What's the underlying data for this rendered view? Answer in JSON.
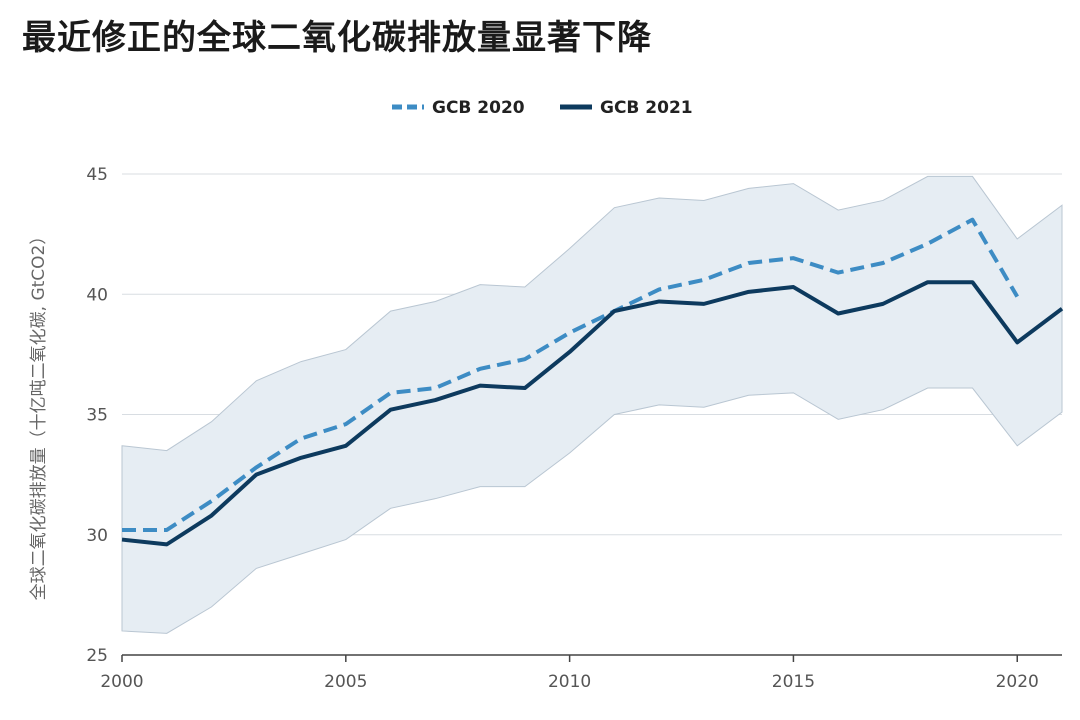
{
  "title": "最近修正的全球二氧化碳排放量显著下降",
  "chart_data": {
    "type": "line",
    "title": "最近修正的全球二氧化碳排放量显著下降",
    "xlabel": "",
    "ylabel": "全球二氧化碳排放量（十亿吨二氧化碳, GtCO2）",
    "xlim": [
      2000,
      2021
    ],
    "ylim": [
      25,
      45
    ],
    "x_ticks": [
      2000,
      2005,
      2010,
      2015,
      2020
    ],
    "y_ticks": [
      25,
      30,
      35,
      40,
      45
    ],
    "grid": "horizontal",
    "legend_position": "top-center",
    "series": [
      {
        "name": "GCB 2020",
        "style": "dashed",
        "color": "#3d8cc4",
        "x": [
          2000,
          2001,
          2002,
          2003,
          2004,
          2005,
          2006,
          2007,
          2008,
          2009,
          2010,
          2011,
          2012,
          2013,
          2014,
          2015,
          2016,
          2017,
          2018,
          2019,
          2020
        ],
        "values": [
          30.2,
          30.2,
          31.4,
          32.8,
          34.0,
          34.6,
          35.9,
          36.1,
          36.9,
          37.3,
          38.4,
          39.3,
          40.2,
          40.6,
          41.3,
          41.5,
          40.9,
          41.3,
          42.1,
          43.1,
          39.9
        ]
      },
      {
        "name": "GCB 2021",
        "style": "solid",
        "color": "#0d3a5e",
        "x": [
          2000,
          2001,
          2002,
          2003,
          2004,
          2005,
          2006,
          2007,
          2008,
          2009,
          2010,
          2011,
          2012,
          2013,
          2014,
          2015,
          2016,
          2017,
          2018,
          2019,
          2020,
          2021
        ],
        "values": [
          29.8,
          29.6,
          30.8,
          32.5,
          33.2,
          33.7,
          35.2,
          35.6,
          36.2,
          36.1,
          37.6,
          39.3,
          39.7,
          39.6,
          40.1,
          40.3,
          39.2,
          39.6,
          40.5,
          40.5,
          38.0,
          39.4
        ]
      }
    ],
    "uncertainty_band": {
      "color": "#e6edf3",
      "x": [
        2000,
        2001,
        2002,
        2003,
        2004,
        2005,
        2006,
        2007,
        2008,
        2009,
        2010,
        2011,
        2012,
        2013,
        2014,
        2015,
        2016,
        2017,
        2018,
        2019,
        2020,
        2021
      ],
      "upper": [
        33.7,
        33.5,
        34.7,
        36.4,
        37.2,
        37.7,
        39.3,
        39.7,
        40.4,
        40.3,
        41.9,
        43.6,
        44.0,
        43.9,
        44.4,
        44.6,
        43.5,
        43.9,
        44.9,
        44.9,
        42.3,
        43.7
      ],
      "lower": [
        26.0,
        25.9,
        27.0,
        28.6,
        29.2,
        29.8,
        31.1,
        31.5,
        32.0,
        32.0,
        33.4,
        35.0,
        35.4,
        35.3,
        35.8,
        35.9,
        34.8,
        35.2,
        36.1,
        36.1,
        33.7,
        35.1
      ]
    }
  }
}
